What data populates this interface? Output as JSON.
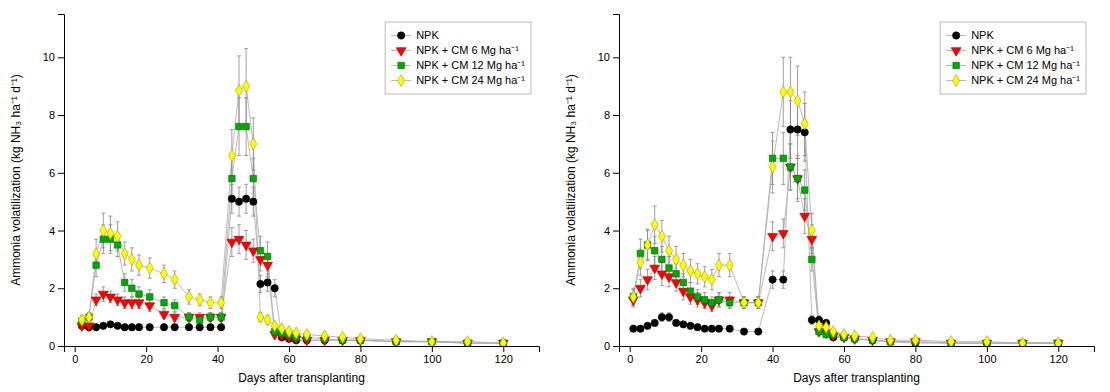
{
  "chart_data": [
    {
      "type": "line",
      "xlabel": "Days after transplanting",
      "ylabel": "Ammonia volatilization (kg NH₃ ha⁻¹ d⁻¹)",
      "xlim": [
        -3,
        130
      ],
      "xticks": [
        0,
        20,
        40,
        60,
        80,
        100,
        120
      ],
      "ylim": [
        0,
        11.5
      ],
      "yticks": [
        0,
        2,
        4,
        6,
        8,
        10
      ],
      "grid": false,
      "legend": "upper-right",
      "x": [
        2,
        4,
        6,
        8,
        10,
        12,
        14,
        16,
        18,
        21,
        25,
        28,
        32,
        35,
        38,
        41,
        44,
        46,
        48,
        50,
        52,
        54,
        56,
        58,
        60,
        62,
        65,
        70,
        75,
        80,
        90,
        100,
        110,
        120
      ],
      "series": [
        {
          "name": "NPK",
          "color": "black",
          "marker": "circle",
          "values": [
            0.7,
            0.65,
            0.65,
            0.7,
            0.75,
            0.7,
            0.65,
            0.65,
            0.65,
            0.65,
            0.65,
            0.65,
            0.65,
            0.65,
            0.65,
            0.65,
            5.1,
            5.0,
            5.1,
            5.0,
            2.15,
            2.2,
            2.0,
            0.3,
            0.25,
            0.2,
            0.2,
            0.2,
            0.2,
            0.2,
            0.15,
            0.15,
            0.1,
            0.1
          ],
          "yerr": [
            0.1,
            0.1,
            0.1,
            0.1,
            0.1,
            0.1,
            0.1,
            0.1,
            0.1,
            0.1,
            0.1,
            0.1,
            0.1,
            0.1,
            0.1,
            0.1,
            0.5,
            0.5,
            0.5,
            0.5,
            0.3,
            0.3,
            0.3,
            0.1,
            0.1,
            0.1,
            0.1,
            0.1,
            0.1,
            0.1,
            0.1,
            0.1,
            0.05,
            0.05
          ]
        },
        {
          "name": "NPK + CM 6 Mg ha⁻¹",
          "color": "red",
          "marker": "triangle-down",
          "values": [
            0.7,
            0.7,
            1.6,
            1.8,
            1.7,
            1.6,
            1.5,
            1.5,
            1.5,
            1.4,
            1.1,
            1.0,
            1.0,
            1.0,
            1.0,
            1.0,
            3.6,
            3.7,
            3.5,
            3.3,
            3.0,
            2.8,
            0.4,
            0.35,
            0.3,
            0.25,
            0.2,
            0.2,
            0.2,
            0.2,
            0.15,
            0.15,
            0.1,
            0.1
          ],
          "yerr": [
            0.1,
            0.1,
            0.2,
            0.25,
            0.2,
            0.2,
            0.2,
            0.2,
            0.2,
            0.2,
            0.15,
            0.15,
            0.15,
            0.15,
            0.15,
            0.15,
            0.5,
            0.5,
            0.5,
            0.4,
            0.4,
            0.4,
            0.1,
            0.1,
            0.1,
            0.1,
            0.1,
            0.1,
            0.1,
            0.1,
            0.1,
            0.1,
            0.05,
            0.05
          ]
        },
        {
          "name": "NPK + CM 12 Mg ha⁻¹",
          "color": "#00aa00",
          "marker": "square",
          "values": [
            0.85,
            1.0,
            2.8,
            3.7,
            3.7,
            3.5,
            2.2,
            2.0,
            1.8,
            1.7,
            1.5,
            1.4,
            1.0,
            0.9,
            1.0,
            1.0,
            5.8,
            7.6,
            7.6,
            5.8,
            3.3,
            3.1,
            0.5,
            0.45,
            0.4,
            0.3,
            0.3,
            0.25,
            0.2,
            0.2,
            0.15,
            0.15,
            0.1,
            0.1
          ],
          "yerr": [
            0.1,
            0.15,
            0.4,
            0.5,
            0.5,
            0.4,
            0.3,
            0.3,
            0.25,
            0.25,
            0.2,
            0.2,
            0.15,
            0.1,
            0.15,
            0.15,
            0.8,
            1.0,
            1.0,
            0.7,
            0.5,
            0.5,
            0.1,
            0.1,
            0.1,
            0.1,
            0.1,
            0.1,
            0.1,
            0.1,
            0.1,
            0.1,
            0.05,
            0.05
          ]
        },
        {
          "name": "NPK + CM 24 Mg ha⁻¹",
          "color": "yellow",
          "marker": "diamond",
          "values": [
            0.9,
            1.0,
            3.2,
            4.0,
            3.9,
            3.8,
            3.2,
            3.0,
            2.8,
            2.7,
            2.5,
            2.3,
            1.7,
            1.6,
            1.5,
            1.5,
            6.6,
            8.85,
            9.0,
            7.0,
            1.0,
            0.9,
            0.7,
            0.6,
            0.5,
            0.45,
            0.4,
            0.35,
            0.3,
            0.25,
            0.2,
            0.15,
            0.15,
            0.1
          ],
          "yerr": [
            0.15,
            0.15,
            0.5,
            0.6,
            0.6,
            0.5,
            0.4,
            0.4,
            0.35,
            0.35,
            0.3,
            0.3,
            0.25,
            0.2,
            0.2,
            0.2,
            0.9,
            1.2,
            1.3,
            0.9,
            0.15,
            0.15,
            0.1,
            0.1,
            0.1,
            0.1,
            0.1,
            0.1,
            0.1,
            0.1,
            0.1,
            0.1,
            0.05,
            0.05
          ]
        }
      ]
    },
    {
      "type": "line",
      "xlabel": "Days after transplanting",
      "ylabel": "Ammonia volatilization (kg NH₃ ha⁻¹ d⁻¹)",
      "xlim": [
        -3,
        130
      ],
      "xticks": [
        0,
        20,
        40,
        60,
        80,
        100,
        120
      ],
      "ylim": [
        0,
        11.5
      ],
      "yticks": [
        0,
        2,
        4,
        6,
        8,
        10
      ],
      "grid": false,
      "legend": "upper-right",
      "x": [
        1,
        3,
        5,
        7,
        9,
        11,
        13,
        15,
        17,
        19,
        21,
        23,
        25,
        28,
        32,
        36,
        40,
        43,
        45,
        47,
        49,
        51,
        53,
        55,
        57,
        60,
        63,
        68,
        73,
        80,
        90,
        100,
        110,
        120
      ],
      "series": [
        {
          "name": "NPK",
          "color": "black",
          "marker": "circle",
          "values": [
            0.6,
            0.6,
            0.7,
            0.8,
            1.0,
            1.0,
            0.8,
            0.75,
            0.7,
            0.65,
            0.6,
            0.6,
            0.6,
            0.6,
            0.5,
            0.5,
            2.3,
            2.3,
            7.5,
            7.5,
            7.4,
            0.9,
            0.9,
            0.8,
            0.3,
            0.3,
            0.25,
            0.2,
            0.15,
            0.1,
            0.1,
            0.1,
            0.1,
            0.1
          ],
          "yerr": [
            0.1,
            0.1,
            0.1,
            0.1,
            0.15,
            0.15,
            0.1,
            0.1,
            0.1,
            0.1,
            0.1,
            0.1,
            0.1,
            0.1,
            0.1,
            0.1,
            0.3,
            0.3,
            1.0,
            1.0,
            1.0,
            0.15,
            0.15,
            0.1,
            0.05,
            0.05,
            0.05,
            0.05,
            0.05,
            0.05,
            0.05,
            0.05,
            0.05,
            0.05
          ]
        },
        {
          "name": "NPK + CM 6 Mg ha⁻¹",
          "color": "red",
          "marker": "triangle-down",
          "values": [
            1.6,
            2.0,
            2.3,
            2.7,
            2.5,
            2.4,
            2.2,
            1.9,
            1.7,
            1.6,
            1.5,
            1.4,
            1.6,
            1.6,
            1.5,
            1.5,
            3.8,
            3.9,
            6.2,
            5.8,
            4.5,
            3.7,
            0.5,
            0.45,
            0.35,
            0.3,
            0.25,
            0.2,
            0.15,
            0.15,
            0.1,
            0.1,
            0.1,
            0.1
          ],
          "yerr": [
            0.25,
            0.3,
            0.35,
            0.4,
            0.4,
            0.35,
            0.3,
            0.3,
            0.25,
            0.25,
            0.2,
            0.2,
            0.25,
            0.25,
            0.2,
            0.2,
            0.5,
            0.5,
            0.8,
            0.7,
            0.6,
            0.5,
            0.1,
            0.1,
            0.05,
            0.05,
            0.05,
            0.05,
            0.05,
            0.05,
            0.05,
            0.05,
            0.05,
            0.05
          ]
        },
        {
          "name": "NPK + CM 12 Mg ha⁻¹",
          "color": "#00aa00",
          "marker": "square",
          "values": [
            1.7,
            3.2,
            3.5,
            3.3,
            3.0,
            2.7,
            2.5,
            2.2,
            1.9,
            1.7,
            1.6,
            1.5,
            1.6,
            1.5,
            1.5,
            1.5,
            6.5,
            6.5,
            6.2,
            5.8,
            5.4,
            3.0,
            0.5,
            0.4,
            0.4,
            0.3,
            0.25,
            0.2,
            0.15,
            0.15,
            0.1,
            0.1,
            0.1,
            0.1
          ],
          "yerr": [
            0.25,
            0.5,
            0.5,
            0.5,
            0.45,
            0.4,
            0.35,
            0.3,
            0.3,
            0.25,
            0.25,
            0.2,
            0.25,
            0.2,
            0.2,
            0.2,
            0.9,
            0.9,
            0.8,
            0.8,
            0.7,
            0.4,
            0.1,
            0.1,
            0.05,
            0.05,
            0.05,
            0.05,
            0.05,
            0.05,
            0.05,
            0.05,
            0.05,
            0.05
          ]
        },
        {
          "name": "NPK + CM 24 Mg ha⁻¹",
          "color": "yellow",
          "marker": "diamond",
          "values": [
            1.7,
            2.9,
            3.5,
            4.2,
            3.8,
            3.3,
            3.0,
            2.8,
            2.6,
            2.5,
            2.4,
            2.3,
            2.8,
            2.8,
            1.5,
            1.5,
            6.2,
            8.8,
            8.8,
            8.5,
            7.7,
            4.0,
            0.7,
            0.65,
            0.5,
            0.4,
            0.35,
            0.3,
            0.2,
            0.2,
            0.15,
            0.15,
            0.1,
            0.1
          ],
          "yerr": [
            0.3,
            0.45,
            0.55,
            0.65,
            0.55,
            0.5,
            0.45,
            0.4,
            0.4,
            0.35,
            0.35,
            0.35,
            0.4,
            0.4,
            0.2,
            0.2,
            0.9,
            1.2,
            1.2,
            1.2,
            1.1,
            0.6,
            0.15,
            0.1,
            0.1,
            0.1,
            0.05,
            0.05,
            0.05,
            0.05,
            0.05,
            0.05,
            0.05,
            0.05
          ]
        }
      ]
    }
  ]
}
